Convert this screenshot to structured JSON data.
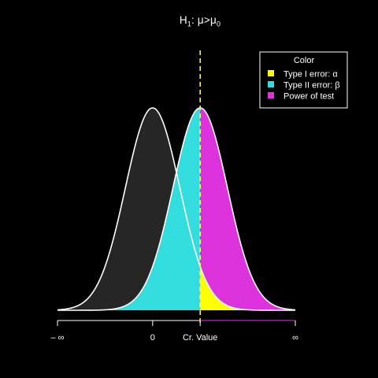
{
  "chart_data": {
    "type": "area",
    "title": {
      "main": "H",
      "sub_1": "1",
      "middle": ": μ>μ",
      "sub_0": "0"
    },
    "xlabel": "",
    "ylabel": "",
    "x_ticks": [
      {
        "value": -3.5,
        "label": "– ∞"
      },
      {
        "value": 0,
        "label": "0"
      },
      {
        "value": 1.75,
        "label": "Cr. Value"
      },
      {
        "value": 5.25,
        "label": "∞"
      }
    ],
    "xlim": [
      -3.5,
      5.25
    ],
    "null_distribution": {
      "mean": 0,
      "sd": 1
    },
    "alternative_distribution": {
      "mean": 1.75,
      "sd": 1
    },
    "critical_value": 1.75,
    "legend": {
      "title": "Color",
      "position": "top-right",
      "items": [
        {
          "label": "Type I error: α",
          "color": "#ffff00"
        },
        {
          "label": "Type II error: β",
          "color": "#33dddd"
        },
        {
          "label": "Power of test",
          "color": "#dd33dd"
        }
      ]
    },
    "colors": {
      "background": "#000000",
      "null_fill": "#262626",
      "curve": "#ffffff",
      "critical_line": "#ffff66"
    },
    "grid": false
  }
}
